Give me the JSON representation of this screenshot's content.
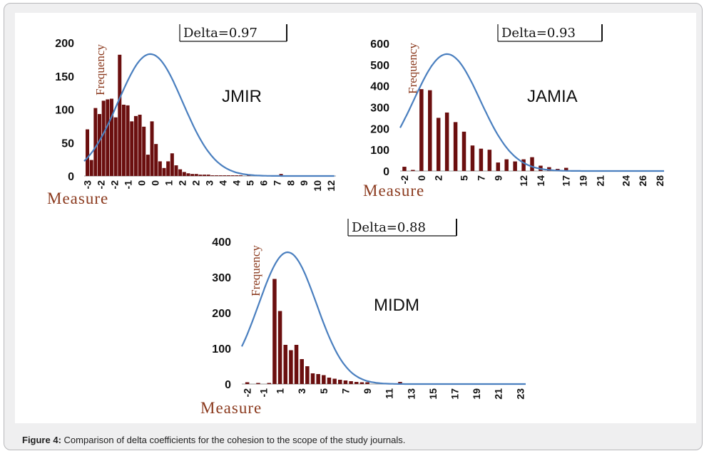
{
  "caption": {
    "label": "Figure 4:",
    "text": " Comparison of delta coefficients for the cohesion to the scope of the study journals."
  },
  "colors": {
    "bar": "#6b0f0f",
    "curve": "#4a7fbf",
    "axis_title": "#8b3a1e",
    "frame": "#efeff0"
  },
  "chart_data": [
    {
      "type": "bar",
      "journal": "JMIR",
      "delta_label": "Delta=0.97",
      "ylabel": "Frequency",
      "xlabel": "Measure",
      "ylim": [
        0,
        200
      ],
      "yticks": [
        0,
        50,
        100,
        150,
        200
      ],
      "xlim": [
        -3.2,
        12.4
      ],
      "xtick_labels": [
        "-3",
        "-2",
        "-2",
        "-1",
        "0",
        "0",
        "1",
        "2",
        "2",
        "3",
        "4",
        "4",
        "5",
        "6",
        "7",
        "8",
        "9",
        "10",
        "12"
      ],
      "bar_x": [
        -3,
        -2.75,
        -2.5,
        -2.25,
        -2,
        -1.75,
        -1.5,
        -1.25,
        -1,
        -0.75,
        -0.5,
        -0.25,
        0,
        0.25,
        0.5,
        0.75,
        1,
        1.25,
        1.5,
        1.75,
        2,
        2.25,
        2.5,
        2.75,
        3,
        3.25,
        3.5,
        3.75,
        4,
        4.25,
        4.5,
        4.75,
        5,
        5.25,
        5.5,
        5.75,
        6,
        6.25,
        6.5,
        7,
        7.5,
        8,
        9,
        12
      ],
      "values": [
        70,
        24,
        102,
        93,
        113,
        115,
        116,
        88,
        182,
        107,
        106,
        82,
        90,
        92,
        74,
        32,
        82,
        48,
        22,
        12,
        22,
        34,
        16,
        10,
        6,
        4,
        3,
        3,
        2,
        2,
        2,
        1,
        1,
        1,
        1,
        1,
        1,
        1,
        1,
        1,
        1,
        1,
        3,
        1
      ],
      "curve": {
        "type": "normal",
        "peak": 183,
        "mean": 0.9,
        "sd": 2.0
      }
    },
    {
      "type": "bar",
      "journal": "JAMIA",
      "delta_label": "Delta=0.93",
      "ylabel": "Frequency",
      "xlabel": "Measure",
      "ylim": [
        0,
        600
      ],
      "yticks": [
        0,
        100,
        200,
        300,
        400,
        500,
        600
      ],
      "xlim": [
        -2.5,
        28.5
      ],
      "xtick_labels": [
        "-2",
        "0",
        "2",
        "5",
        "7",
        "9",
        "12",
        "14",
        "17",
        "19",
        "21",
        "24",
        "26",
        "28"
      ],
      "xtick_values": [
        -2,
        0,
        2,
        5,
        7,
        9,
        12,
        14,
        17,
        19,
        21,
        24,
        26,
        28
      ],
      "bar_x": [
        -2,
        -1,
        0,
        1,
        2,
        3,
        4,
        5,
        6,
        7,
        8,
        9,
        10,
        11,
        12,
        13,
        14,
        15,
        16,
        17
      ],
      "values": [
        20,
        5,
        385,
        380,
        250,
        275,
        230,
        185,
        120,
        105,
        100,
        40,
        55,
        45,
        55,
        65,
        25,
        18,
        10,
        15
      ],
      "curve": {
        "type": "normal",
        "peak": 550,
        "mean": 3.0,
        "sd": 3.9
      }
    },
    {
      "type": "bar",
      "journal": "MIDM",
      "delta_label": "Delta=0.88",
      "ylabel": "Frequency",
      "xlabel": "Measure",
      "ylim": [
        0,
        400
      ],
      "yticks": [
        0,
        100,
        200,
        300,
        400
      ],
      "xlim": [
        -2.5,
        23.5
      ],
      "xtick_labels": [
        "-2",
        "-1",
        "1",
        "3",
        "5",
        "7",
        "9",
        "11",
        "13",
        "15",
        "17",
        "19",
        "21",
        "23"
      ],
      "xtick_values": [
        -2,
        -0.5,
        1,
        3,
        5,
        7,
        9,
        11,
        13,
        15,
        17,
        19,
        21,
        23
      ],
      "bar_x": [
        -2,
        -1,
        0,
        0.5,
        1,
        1.5,
        2,
        2.5,
        3,
        3.5,
        4,
        4.5,
        5,
        5.5,
        6,
        6.5,
        7,
        7.5,
        8,
        8.5,
        9,
        12
      ],
      "values": [
        5,
        3,
        3,
        295,
        205,
        110,
        95,
        110,
        70,
        50,
        30,
        28,
        25,
        18,
        15,
        12,
        10,
        8,
        6,
        5,
        5,
        6
      ],
      "curve": {
        "type": "normal",
        "peak": 370,
        "mean": 1.7,
        "sd": 2.65
      }
    }
  ]
}
